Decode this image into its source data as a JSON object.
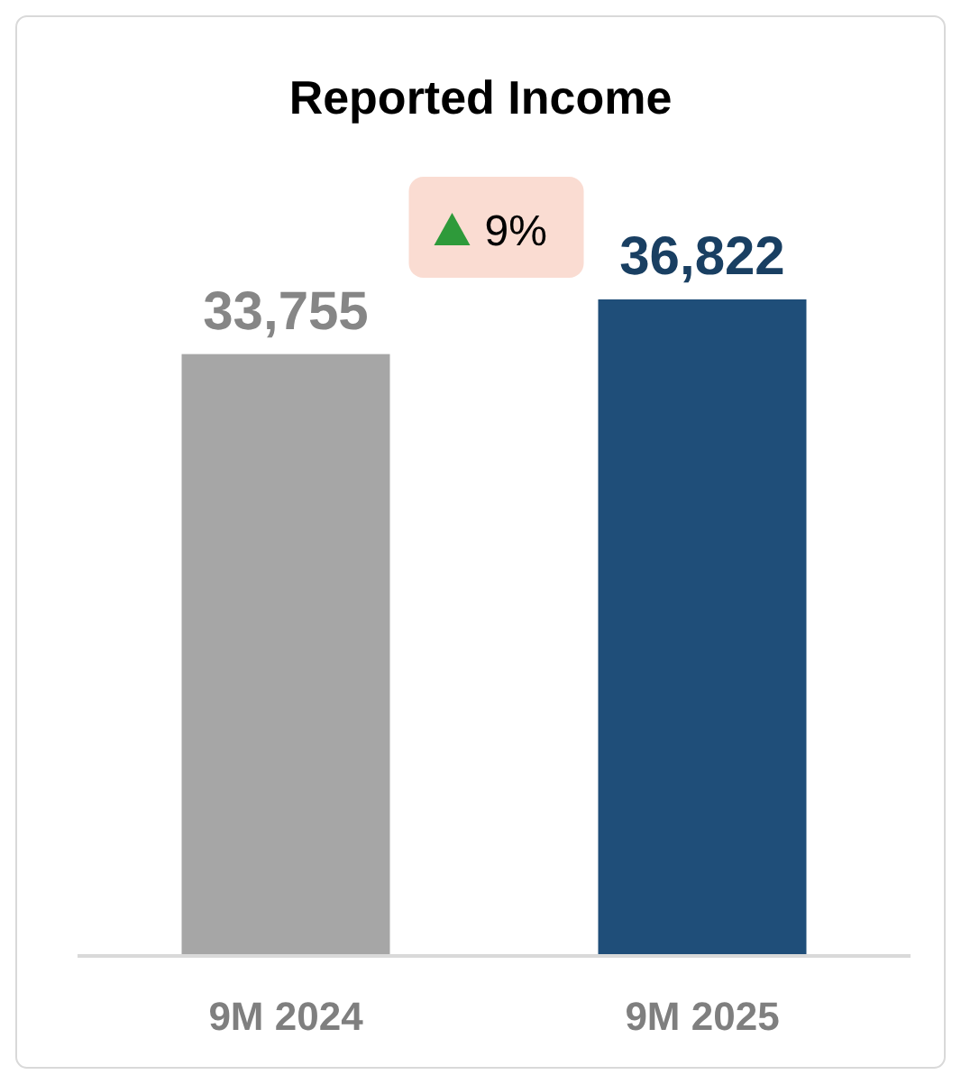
{
  "chart_data": {
    "type": "bar",
    "title": "Reported Income",
    "categories": [
      "9M 2024",
      "9M 2025"
    ],
    "values": [
      33755,
      36822
    ],
    "colors": [
      "#a6a6a6",
      "#1f4e79"
    ],
    "value_labels": [
      "33,755",
      "36,822"
    ],
    "annotations": [
      "9%"
    ]
  }
}
